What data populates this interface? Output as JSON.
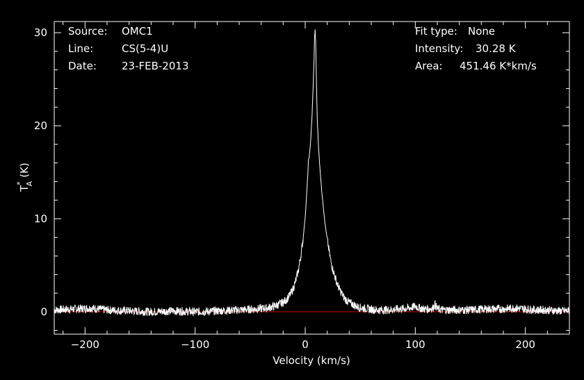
{
  "info": {
    "source_label": "Source:",
    "source_value": "OMC1",
    "line_label": "Line:",
    "line_value": "CS(5-4)U",
    "date_label": "Date:",
    "date_value": "23-FEB-2013",
    "fit_label": "Fit type:",
    "fit_value": "None",
    "intensity_label": "Intensity:",
    "intensity_value": "30.28 K",
    "area_label": "Area:",
    "area_value": "451.46 K*km/s"
  },
  "axes": {
    "xlabel": "Velocity (km/s)",
    "ylabel_main": "T",
    "ylabel_sup": "*",
    "ylabel_sub": "A",
    "ylabel_unit": "(K)"
  },
  "colors": {
    "background": "#000000",
    "spectrum": "#ffffff",
    "baseline": "#cc0000"
  },
  "chart_data": {
    "type": "line",
    "xlabel": "Velocity (km/s)",
    "ylabel": "T_A* (K)",
    "xlim": [
      -228,
      240
    ],
    "ylim": [
      -2.4,
      31.2
    ],
    "x_ticks": [
      -200,
      -100,
      0,
      100,
      200
    ],
    "x_tick_labels": [
      "−200",
      "−100",
      "0",
      "100",
      "200"
    ],
    "y_ticks": [
      0,
      10,
      20,
      30
    ],
    "y_tick_labels": [
      "0",
      "10",
      "20",
      "30"
    ],
    "grid": false,
    "baseline_y": 0,
    "series": [
      {
        "x": [
          -228,
          -210,
          -195,
          -180,
          -160,
          -140,
          -120,
          -100,
          -80,
          -60,
          -45,
          -35,
          -28,
          -22,
          -18,
          -15,
          -12,
          -10,
          -8,
          -6,
          -4,
          -2,
          0,
          1,
          2,
          3,
          4,
          5,
          6,
          7,
          8,
          8.5,
          9,
          9.5,
          10,
          10.5,
          11,
          12,
          13,
          14,
          15,
          16,
          18,
          20,
          22,
          24,
          26,
          28,
          30,
          33,
          36,
          40,
          45,
          48,
          52,
          58,
          65,
          75,
          85,
          95,
          100,
          104,
          108,
          112,
          116,
          118,
          120,
          125,
          135,
          150,
          165,
          180,
          190,
          200,
          210,
          220,
          230,
          240
        ],
        "values": [
          0.2,
          0.3,
          0.4,
          0.2,
          0.1,
          0.0,
          0.1,
          0.0,
          0.1,
          0.2,
          0.3,
          0.4,
          0.6,
          0.9,
          1.2,
          1.6,
          2.2,
          2.8,
          3.6,
          4.6,
          6.0,
          7.8,
          10.2,
          12.0,
          14.0,
          16.3,
          17.0,
          18.5,
          20.5,
          23.5,
          27.0,
          29.5,
          30.28,
          29.0,
          26.0,
          23.0,
          20.5,
          18.0,
          16.0,
          14.5,
          13.0,
          11.8,
          9.5,
          7.8,
          6.3,
          5.0,
          4.2,
          3.4,
          2.7,
          2.0,
          1.4,
          1.0,
          0.7,
          0.5,
          0.4,
          0.3,
          0.2,
          0.2,
          0.3,
          0.4,
          0.6,
          0.4,
          0.3,
          0.3,
          0.4,
          0.8,
          0.3,
          0.2,
          0.2,
          0.2,
          0.3,
          0.3,
          0.4,
          0.3,
          0.2,
          0.2,
          0.1,
          0.1
        ]
      }
    ]
  }
}
